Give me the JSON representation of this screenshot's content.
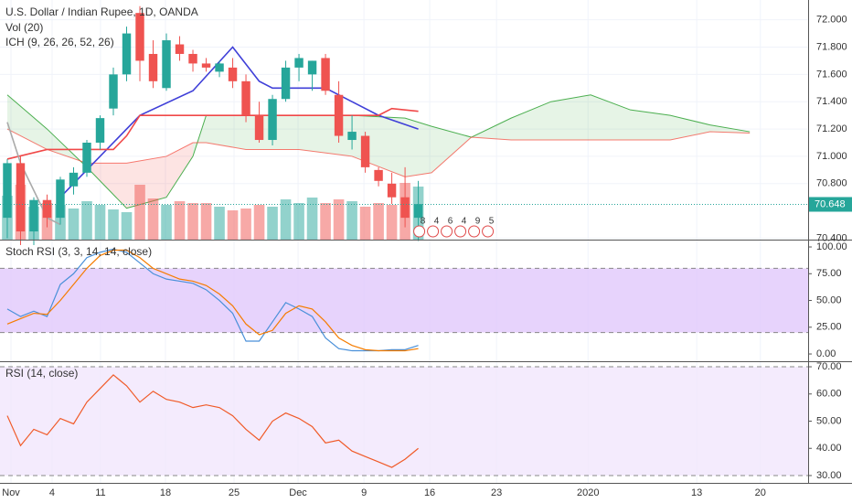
{
  "chart_data": [
    {
      "type": "candlestick",
      "title": "U.S. Dollar / Indian Rupee, 1D, OANDA",
      "subtitle": "Vol (20)",
      "indicator": "ICH (9, 26, 26, 52, 26)",
      "x": [
        0,
        1,
        2,
        3,
        4,
        5,
        6,
        7,
        8,
        9,
        10,
        11,
        12,
        13,
        14,
        15,
        16,
        17,
        18,
        19,
        20,
        21,
        22,
        23,
        24,
        25,
        26,
        27,
        28,
        29,
        30,
        31
      ],
      "open": [
        70.55,
        70.95,
        70.45,
        70.68,
        70.55,
        70.78,
        70.88,
        71.1,
        71.35,
        71.6,
        72.05,
        71.75,
        71.5,
        71.82,
        71.75,
        71.68,
        71.62,
        71.65,
        71.55,
        71.3,
        71.12,
        71.42,
        71.65,
        71.6,
        71.72,
        71.45,
        71.12,
        71.15,
        70.9,
        70.8,
        70.7,
        70.55
      ],
      "high": [
        70.98,
        71.0,
        70.7,
        70.72,
        70.85,
        70.92,
        71.12,
        71.3,
        71.65,
        71.95,
        72.1,
        71.85,
        71.9,
        71.88,
        71.78,
        71.72,
        71.7,
        71.72,
        71.6,
        71.4,
        71.45,
        71.7,
        71.75,
        71.7,
        71.75,
        71.55,
        71.3,
        71.18,
        70.92,
        70.88,
        70.92,
        70.82
      ],
      "low": [
        70.4,
        70.35,
        70.35,
        70.48,
        70.5,
        70.72,
        70.85,
        71.05,
        71.3,
        71.55,
        71.55,
        71.5,
        71.48,
        71.7,
        71.62,
        71.62,
        71.58,
        71.5,
        71.25,
        71.1,
        71.08,
        71.4,
        71.55,
        71.48,
        71.45,
        71.1,
        71.05,
        70.88,
        70.78,
        70.65,
        70.48,
        70.38
      ],
      "close": [
        70.95,
        70.45,
        70.68,
        70.55,
        70.83,
        70.88,
        71.1,
        71.28,
        71.6,
        71.9,
        71.7,
        71.55,
        71.85,
        71.75,
        71.68,
        71.65,
        71.68,
        71.55,
        71.3,
        71.12,
        71.42,
        71.65,
        71.72,
        71.7,
        71.48,
        71.15,
        71.18,
        70.92,
        70.82,
        70.7,
        70.55,
        70.65
      ],
      "volume": [
        48,
        60,
        36,
        40,
        38,
        34,
        42,
        38,
        33,
        30,
        60,
        45,
        38,
        42,
        40,
        40,
        36,
        32,
        34,
        38,
        36,
        44,
        40,
        46,
        40,
        44,
        42,
        36,
        40,
        38,
        62,
        58
      ],
      "up_color": "#26a69a",
      "down_color": "#ef5350",
      "lines": [
        {
          "color": "#3f3fd8",
          "x": [
            4,
            6,
            9,
            10,
            14,
            17,
            19,
            20,
            24,
            26,
            28,
            31
          ],
          "values": [
            70.7,
            70.9,
            71.2,
            71.3,
            71.48,
            71.8,
            71.55,
            71.5,
            71.5,
            71.4,
            71.3,
            71.2
          ]
        },
        {
          "color": "#f04848",
          "x": [
            0,
            3,
            5,
            8,
            9,
            10,
            20,
            25,
            28,
            29,
            31
          ],
          "values": [
            70.98,
            71.05,
            71.05,
            71.05,
            71.15,
            71.3,
            71.3,
            71.3,
            71.3,
            71.35,
            71.33
          ]
        },
        {
          "color": "#aaaaaa",
          "x": [
            0,
            1,
            2,
            3,
            4
          ],
          "values": [
            71.25,
            70.95,
            70.75,
            70.55,
            70.5
          ]
        }
      ],
      "cloud": {
        "x": [
          0,
          3,
          6,
          9,
          12,
          14,
          15,
          18,
          22,
          26,
          30,
          32,
          35,
          38,
          41,
          44,
          47,
          50,
          53,
          56
        ],
        "span_a": [
          71.45,
          71.2,
          70.92,
          70.62,
          70.7,
          71.0,
          71.3,
          71.3,
          71.3,
          71.3,
          71.28,
          71.22,
          71.14,
          71.28,
          71.4,
          71.45,
          71.34,
          71.3,
          71.23,
          71.18
        ],
        "span_b": [
          71.2,
          71.05,
          70.95,
          70.95,
          71.0,
          71.1,
          71.1,
          71.05,
          71.05,
          71.0,
          70.85,
          70.88,
          71.14,
          71.12,
          71.12,
          71.12,
          71.12,
          71.12,
          71.18,
          71.17
        ],
        "color_a": "#4caf50",
        "color_b": "#f44336"
      },
      "last_price": 70.648,
      "events": [
        8,
        4,
        6,
        4,
        9,
        5
      ],
      "xlim": [
        -0.55,
        60.4
      ],
      "xticks": [
        {
          "value": 0.28,
          "label": "Nov"
        },
        {
          "value": 3.38,
          "label": "4"
        },
        {
          "value": 7.03,
          "label": "11"
        },
        {
          "value": 11.93,
          "label": "18"
        },
        {
          "value": 17.1,
          "label": "25"
        },
        {
          "value": 21.93,
          "label": "Dec"
        },
        {
          "value": 26.9,
          "label": "9"
        },
        {
          "value": 31.86,
          "label": "16"
        },
        {
          "value": 36.9,
          "label": "23"
        },
        {
          "value": 43.8,
          "label": "2020"
        },
        {
          "value": 52,
          "label": "13"
        },
        {
          "value": 56.8,
          "label": "20"
        }
      ],
      "ylim": [
        70.39,
        72.145
      ],
      "yticks": [
        {
          "value": 72,
          "label": "72.000"
        },
        {
          "value": 71.8,
          "label": "71.800"
        },
        {
          "value": 71.6,
          "label": "71.600"
        },
        {
          "value": 71.4,
          "label": "71.400"
        },
        {
          "value": 71.2,
          "label": "71.200"
        },
        {
          "value": 71,
          "label": "71.000"
        },
        {
          "value": 70.8,
          "label": "70.800"
        },
        {
          "value": 70.4,
          "label": "70.400"
        }
      ]
    },
    {
      "type": "line",
      "title": "Stoch RSI (3, 3, 14, 14, close)",
      "x": [
        0,
        1,
        2,
        3,
        4,
        5,
        6,
        7,
        8,
        9,
        10,
        11,
        12,
        13,
        14,
        15,
        16,
        17,
        18,
        19,
        20,
        21,
        22,
        23,
        24,
        25,
        26,
        27,
        28,
        29,
        30,
        31
      ],
      "series": [
        {
          "color": "#4a90d9",
          "values": [
            42,
            35,
            40,
            35,
            65,
            75,
            90,
            95,
            98,
            95,
            85,
            75,
            70,
            68,
            66,
            60,
            50,
            38,
            12,
            12,
            30,
            48,
            42,
            35,
            15,
            5,
            3,
            3,
            3,
            4,
            4,
            8
          ]
        },
        {
          "color": "#f57c00",
          "values": [
            28,
            33,
            38,
            37,
            50,
            65,
            80,
            92,
            97,
            97,
            90,
            80,
            75,
            70,
            68,
            64,
            56,
            45,
            28,
            18,
            22,
            38,
            45,
            42,
            30,
            15,
            8,
            4,
            3,
            3,
            3,
            5
          ]
        }
      ],
      "bands": [
        20,
        80
      ],
      "band_color": "#e1c8fb",
      "ylim": [
        -6.8,
        106
      ],
      "yticks": [
        {
          "value": 100,
          "label": "100.00"
        },
        {
          "value": 75,
          "label": "75.00"
        },
        {
          "value": 50,
          "label": "50.00"
        },
        {
          "value": 25,
          "label": "25.00"
        },
        {
          "value": 0,
          "label": "0.00"
        }
      ]
    },
    {
      "type": "line",
      "title": "RSI (14, close)",
      "x": [
        0,
        1,
        2,
        3,
        4,
        5,
        6,
        7,
        8,
        9,
        10,
        11,
        12,
        13,
        14,
        15,
        16,
        17,
        18,
        19,
        20,
        21,
        22,
        23,
        24,
        25,
        26,
        27,
        28,
        29,
        30,
        31
      ],
      "series": [
        {
          "color": "#f05a28",
          "values": [
            52,
            41,
            47,
            45,
            51,
            49,
            57,
            62,
            67,
            63,
            57,
            61,
            58,
            57,
            55,
            56,
            55,
            52,
            47,
            43,
            50,
            53,
            51,
            48,
            42,
            43,
            39,
            37,
            35,
            33,
            36,
            40
          ]
        }
      ],
      "bands": [
        30,
        70
      ],
      "band_color": "#f1e6fd",
      "ylim": [
        27.3,
        71.7
      ],
      "yticks": [
        {
          "value": 70,
          "label": "70.00"
        },
        {
          "value": 60,
          "label": "60.00"
        },
        {
          "value": 50,
          "label": "50.00"
        },
        {
          "value": 40,
          "label": "40.00"
        },
        {
          "value": 30,
          "label": "30.00"
        }
      ]
    }
  ]
}
